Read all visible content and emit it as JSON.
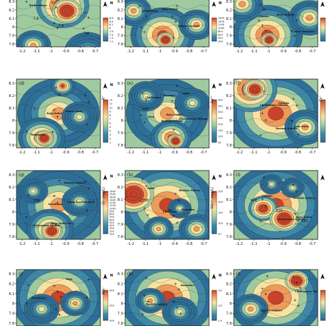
{
  "colors": {
    "high": "#c8432b",
    "upper": "#ee9a5a",
    "mid": "#f6e3a2",
    "lower": "#9fcaa0",
    "low": "#3f87a6",
    "lowest": "#2e6f97",
    "contour": "#222222",
    "background": "#ffffff"
  },
  "axes": {
    "x_ticks": [
      "-1.2",
      "-1.1",
      "-1",
      "-0.9",
      "-0.8",
      "-0.7"
    ],
    "y_ticks": [
      "8.3",
      "8.2",
      "8.1",
      "8",
      "7.9",
      "7.8"
    ]
  },
  "north_symbol": "N",
  "panels": [
    {
      "letter": "",
      "caption": "",
      "colorbar_ticks": [
        "8.6",
        "8.4",
        "8.2",
        "8",
        "7.8",
        "7.6",
        "7.4",
        "7.2"
      ],
      "places": [
        "Birds Sahara"
      ],
      "contour_labels": [
        "7.8",
        "7.6",
        "7.4"
      ]
    },
    {
      "letter": "",
      "caption": "",
      "colorbar_ticks": [
        "1600",
        "1400",
        "1200",
        "1000",
        "800",
        "600",
        "400",
        "200"
      ],
      "places": [
        "Eramunna",
        "Laban Quarters",
        "Bayo Dohol"
      ],
      "contour_labels": []
    },
    {
      "letter": "",
      "caption": "",
      "colorbar_ticks": [
        "8.2",
        "8.1",
        "8",
        "7.9",
        "7.8"
      ],
      "places": [
        "Chiamu",
        "Laban Quarters",
        "Bayo Dohol"
      ],
      "contour_labels": []
    },
    {
      "letter": "(d)",
      "caption": "K⁺",
      "colorbar_ticks": [
        "12",
        "11",
        "10",
        "9",
        "8",
        "7",
        "6",
        "5",
        "4",
        "3",
        "2",
        "1"
      ],
      "places": [
        "Raja Dohol",
        "Wembarra",
        "Sahara Baba"
      ],
      "contour_labels": [
        "7"
      ]
    },
    {
      "letter": "(e)",
      "caption": "Ca²⁺",
      "colorbar_ticks": [
        "400",
        "350",
        "300",
        "250",
        "200",
        "150",
        "100",
        "50"
      ],
      "places": [
        "Barinya Sahara",
        "Chukwuma",
        "Chelentama Nforsin",
        "Kassinu",
        "Dara",
        "Ambe",
        "Bayo Dohol"
      ],
      "contour_labels": [
        "200"
      ]
    },
    {
      "letter": "(f)",
      "caption": "Cs⁺",
      "colorbar_ticks": [
        "650",
        "600",
        "550",
        "500",
        "450",
        "400",
        "350",
        "300",
        "250",
        "200",
        "150",
        "100"
      ],
      "places": [
        "Barinya Sahara",
        "Chelentama Nforsin",
        "Pain Sonu",
        "Gulmba"
      ],
      "contour_labels": []
    },
    {
      "letter": "(g)",
      "caption": "Cl⁻ (mg/L)",
      "colorbar_ticks": [
        "1600",
        "1500",
        "1400",
        "1300",
        "1200",
        "1100",
        "1000",
        "900",
        "800",
        "700",
        "600",
        "500",
        "400",
        "300",
        "200",
        "100"
      ],
      "places": [
        "Barinya Sahara",
        "Kassinuna",
        "Chelentama Nforsin",
        "Laban Kali Bayowol",
        "Bayo Dohol No.1"
      ],
      "contour_labels": [
        "200"
      ]
    },
    {
      "letter": "(h)",
      "caption": "SO₄²⁻ (mg/L)",
      "colorbar_ticks": [
        "250",
        "200",
        "150",
        "100",
        "50"
      ],
      "places": [
        "Barinya Sahara",
        "Piko Kone",
        "Ambe",
        "Hamadau"
      ],
      "contour_labels": [
        "350",
        "25"
      ]
    },
    {
      "letter": "(i)",
      "caption": "",
      "colorbar_ticks": [],
      "places": [
        "Barinya Sahara",
        "Chelentama Nforsin",
        "Chiamu",
        "Bayo Dohol"
      ],
      "contour_labels": [
        "420",
        "220",
        "320"
      ]
    },
    {
      "letter": "(j)",
      "caption": "NO₃⁻",
      "colorbar_ticks": [
        "300",
        "250",
        "200"
      ],
      "places": [
        "Wembarra",
        "Raja"
      ],
      "contour_labels": []
    },
    {
      "letter": "(k)",
      "caption": "",
      "colorbar_ticks": [
        "1.8",
        "1.6",
        "1.4"
      ],
      "places": [
        "Barinya Sahara",
        "Hamadau"
      ],
      "contour_labels": []
    },
    {
      "letter": "(l)",
      "caption": "",
      "colorbar_ticks": [
        "0.2",
        "0.1"
      ],
      "places": [
        "Barinya Sahara",
        "Chelentama Nforsin"
      ],
      "contour_labels": []
    }
  ]
}
